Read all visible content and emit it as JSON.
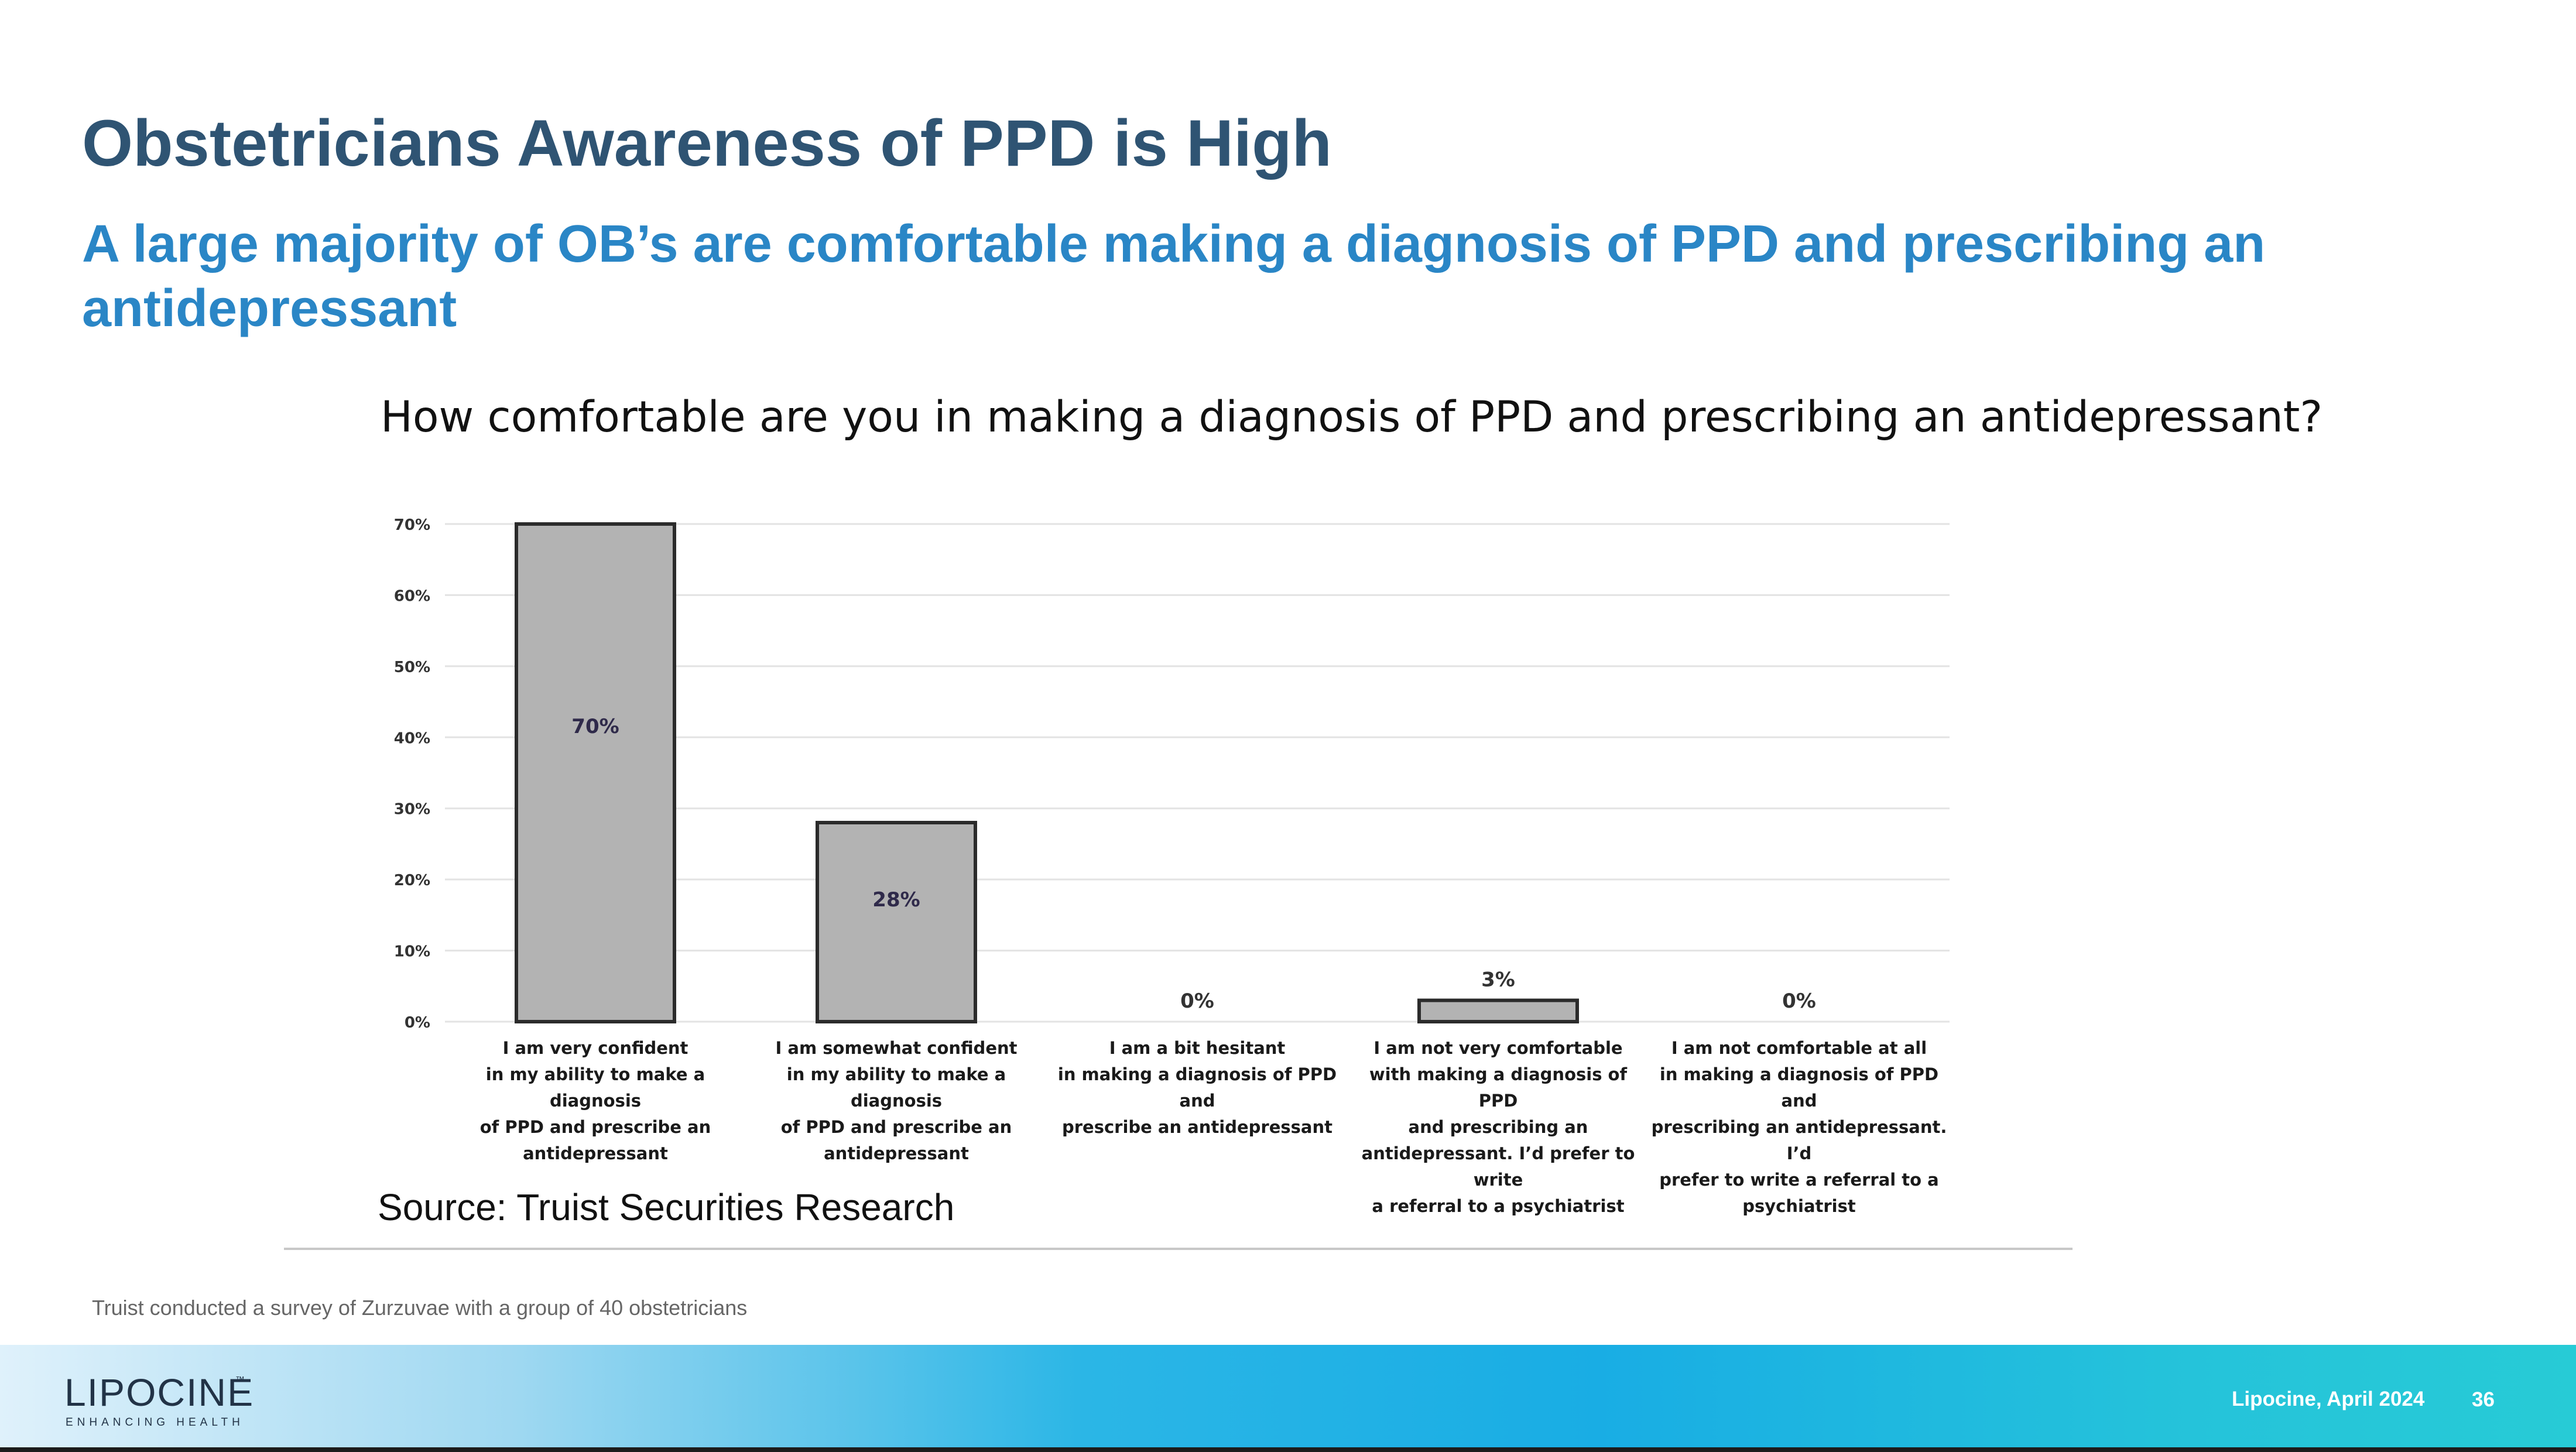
{
  "slide": {
    "title": "Obstetricians Awareness of PPD is High",
    "subtitle": "A large majority of OB’s are comfortable making a diagnosis of PPD and prescribing an antidepressant",
    "question": "How comfortable are you in making a diagnosis of PPD and prescribing an antidepressant?",
    "source": "Source: Truist Securities Research",
    "footnote": "Truist conducted a survey of Zurzuvae  with a group of 40 obstetricians"
  },
  "footer": {
    "logo_text": "LIPOCINE",
    "logo_mark": "™",
    "logo_tagline": "ENHANCING HEALTH",
    "date": "Lipocine, April 2024",
    "page_number": "36"
  },
  "colors": {
    "title": "#2f5473",
    "subtitle": "#2a86c6",
    "bar_fill": "#b3b3b3",
    "bar_stroke": "#2b2b2b",
    "gridline": "#e3e3e3",
    "tick_text": "#333333",
    "value_text": "#2f2a4a"
  },
  "chart_data": {
    "type": "bar",
    "title": "How comfortable are you in making a diagnosis of PPD and prescribing an antidepressant?",
    "xlabel": "",
    "ylabel": "",
    "ylim": [
      0,
      70
    ],
    "yticks": [
      0,
      10,
      20,
      30,
      40,
      50,
      60,
      70
    ],
    "ytick_labels": [
      "0%",
      "10%",
      "20%",
      "30%",
      "40%",
      "50%",
      "60%",
      "70%"
    ],
    "grid": true,
    "legend": "none",
    "categories": [
      [
        "I am very confident",
        "in my ability to make a diagnosis",
        "of PPD and prescribe an",
        "antidepressant"
      ],
      [
        "I am somewhat confident",
        "in my ability to make a diagnosis",
        "of PPD and prescribe an",
        "antidepressant"
      ],
      [
        "I am a bit hesitant",
        "in making a diagnosis of PPD and",
        "prescribe an antidepressant"
      ],
      [
        "I am not very comfortable",
        "with making a diagnosis of PPD",
        "and prescribing an",
        "antidepressant. I’d prefer to write",
        "a referral to a psychiatrist"
      ],
      [
        "I am not comfortable at all",
        "in making a diagnosis of PPD and",
        "prescribing an antidepressant. I’d",
        "prefer to write a referral to a",
        "psychiatrist"
      ]
    ],
    "values": [
      70,
      28,
      0,
      3,
      0
    ],
    "data_labels": [
      "70%",
      "28%",
      "0%",
      "3%",
      "0%"
    ]
  }
}
